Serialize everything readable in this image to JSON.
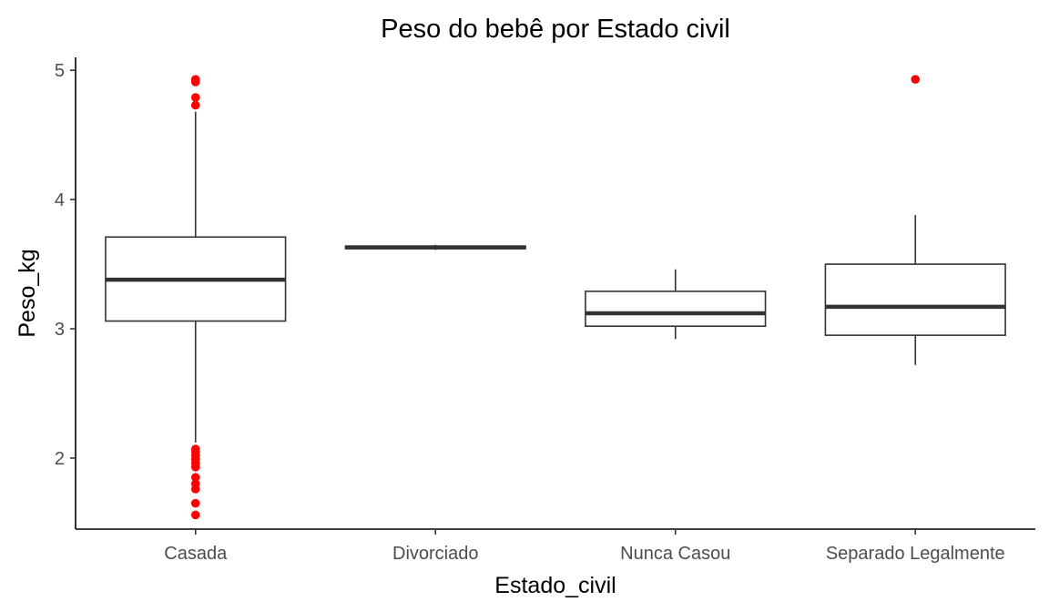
{
  "chart_data": {
    "type": "boxplot",
    "title": "Peso do bebê por Estado civil",
    "xlabel": "Estado_civil",
    "ylabel": "Peso_kg",
    "ylim": [
      1.45,
      5.1
    ],
    "yticks": [
      2,
      3,
      4,
      5
    ],
    "grid": false,
    "outlier_color": "#ff0000",
    "categories": [
      "Casada",
      "Divorciado",
      "Nunca Casou",
      "Separado Legalmente"
    ],
    "boxes": [
      {
        "category": "Casada",
        "whisker_low": 2.12,
        "q1": 3.06,
        "median": 3.38,
        "q3": 3.71,
        "whisker_high": 4.68,
        "outliers": [
          4.93,
          4.92,
          4.91,
          4.79,
          4.73,
          2.07,
          2.05,
          2.02,
          1.99,
          1.96,
          1.93,
          1.85,
          1.8,
          1.76,
          1.65,
          1.56
        ]
      },
      {
        "category": "Divorciado",
        "whisker_low": 3.61,
        "q1": 3.62,
        "median": 3.63,
        "q3": 3.64,
        "whisker_high": 3.65,
        "outliers": []
      },
      {
        "category": "Nunca Casou",
        "whisker_low": 2.92,
        "q1": 3.02,
        "median": 3.12,
        "q3": 3.29,
        "whisker_high": 3.46,
        "outliers": []
      },
      {
        "category": "Separado Legalmente",
        "whisker_low": 2.72,
        "q1": 2.95,
        "median": 3.17,
        "q3": 3.5,
        "whisker_high": 3.88,
        "outliers": [
          4.93
        ]
      }
    ]
  }
}
